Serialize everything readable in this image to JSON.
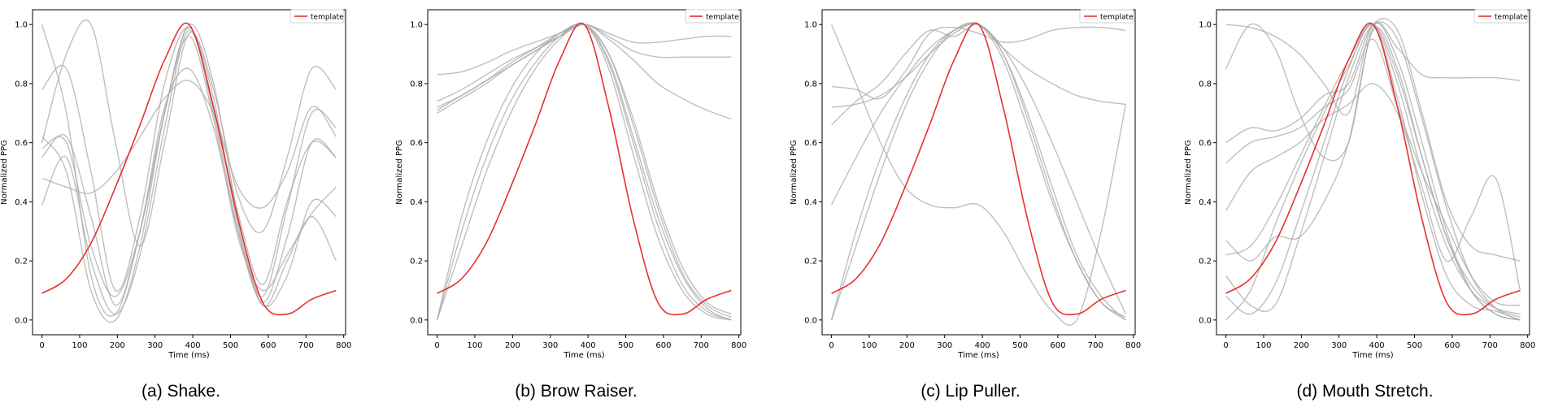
{
  "chart_data": [
    {
      "type": "line",
      "caption": "(a) Shake.",
      "xlabel": "Time (ms)",
      "ylabel": "Normalized PPG",
      "xlim": [
        -25,
        805
      ],
      "ylim": [
        -0.05,
        1.05
      ],
      "xticks": [
        0,
        100,
        200,
        300,
        400,
        500,
        600,
        700,
        800
      ],
      "yticks": [
        0.0,
        0.2,
        0.4,
        0.6,
        0.8,
        1.0
      ],
      "legend": {
        "label": "template",
        "position": "top-right"
      },
      "colors": {
        "template": "#e8312f",
        "samples": "#a9a9a9"
      },
      "x": [
        0,
        65,
        130,
        195,
        260,
        325,
        390,
        455,
        520,
        585,
        650,
        715,
        780
      ],
      "template": {
        "name": "template",
        "values": [
          0.09,
          0.14,
          0.26,
          0.45,
          0.66,
          0.88,
          1.0,
          0.72,
          0.34,
          0.06,
          0.02,
          0.07,
          0.1
        ]
      },
      "samples": [
        {
          "values": [
            1.0,
            0.7,
            0.15,
            0.02,
            0.3,
            0.7,
            1.0,
            0.8,
            0.35,
            0.05,
            0.2,
            0.35,
            0.2
          ]
        },
        {
          "values": [
            0.78,
            0.85,
            0.5,
            0.1,
            0.35,
            0.8,
            0.99,
            0.75,
            0.32,
            0.08,
            0.38,
            0.7,
            0.65
          ]
        },
        {
          "values": [
            0.6,
            0.9,
            1.0,
            0.6,
            0.25,
            0.6,
            0.97,
            0.78,
            0.42,
            0.3,
            0.55,
            0.85,
            0.78
          ]
        },
        {
          "values": [
            0.55,
            0.62,
            0.35,
            0.05,
            0.3,
            0.72,
            0.85,
            0.65,
            0.3,
            0.06,
            0.28,
            0.6,
            0.55
          ]
        },
        {
          "values": [
            0.48,
            0.45,
            0.43,
            0.5,
            0.62,
            0.75,
            0.81,
            0.7,
            0.45,
            0.38,
            0.5,
            0.72,
            0.62
          ]
        },
        {
          "values": [
            0.39,
            0.55,
            0.2,
            0.02,
            0.22,
            0.65,
            0.98,
            0.7,
            0.3,
            0.05,
            0.15,
            0.4,
            0.35
          ]
        },
        {
          "values": [
            0.62,
            0.5,
            0.1,
            0.0,
            0.25,
            0.7,
            0.96,
            0.68,
            0.28,
            0.1,
            0.22,
            0.36,
            0.45
          ]
        },
        {
          "values": [
            0.58,
            0.6,
            0.25,
            0.08,
            0.3,
            0.7,
            0.99,
            0.72,
            0.36,
            0.12,
            0.4,
            0.6,
            0.55
          ]
        }
      ]
    },
    {
      "type": "line",
      "caption": "(b) Brow Raiser.",
      "xlabel": "Time (ms)",
      "ylabel": "Normalized PPG",
      "xlim": [
        -25,
        805
      ],
      "ylim": [
        -0.05,
        1.05
      ],
      "xticks": [
        0,
        100,
        200,
        300,
        400,
        500,
        600,
        700,
        800
      ],
      "yticks": [
        0.0,
        0.2,
        0.4,
        0.6,
        0.8,
        1.0
      ],
      "legend": {
        "label": "template",
        "position": "top-right"
      },
      "colors": {
        "template": "#e8312f",
        "samples": "#a9a9a9"
      },
      "x": [
        0,
        65,
        130,
        195,
        260,
        325,
        390,
        455,
        520,
        585,
        650,
        715,
        780
      ],
      "template": {
        "name": "template",
        "values": [
          0.09,
          0.14,
          0.26,
          0.45,
          0.66,
          0.88,
          1.0,
          0.72,
          0.34,
          0.06,
          0.02,
          0.07,
          0.1
        ]
      },
      "samples": [
        {
          "values": [
            0.83,
            0.84,
            0.87,
            0.91,
            0.94,
            0.97,
            1.0,
            0.97,
            0.94,
            0.94,
            0.95,
            0.96,
            0.96
          ]
        },
        {
          "values": [
            0.74,
            0.78,
            0.83,
            0.88,
            0.92,
            0.96,
            1.0,
            0.96,
            0.91,
            0.89,
            0.89,
            0.89,
            0.89
          ]
        },
        {
          "values": [
            0.72,
            0.76,
            0.81,
            0.86,
            0.91,
            0.96,
            1.0,
            0.95,
            0.88,
            0.8,
            0.75,
            0.71,
            0.68
          ]
        },
        {
          "values": [
            0.7,
            0.75,
            0.8,
            0.86,
            0.91,
            0.96,
            1.0,
            0.88,
            0.62,
            0.35,
            0.15,
            0.04,
            0.0
          ]
        },
        {
          "values": [
            0.0,
            0.35,
            0.6,
            0.78,
            0.9,
            0.97,
            1.0,
            0.9,
            0.66,
            0.38,
            0.16,
            0.05,
            0.01
          ]
        },
        {
          "values": [
            0.0,
            0.3,
            0.55,
            0.74,
            0.87,
            0.96,
            1.0,
            0.87,
            0.6,
            0.32,
            0.12,
            0.03,
            0.0
          ]
        },
        {
          "values": [
            0.0,
            0.25,
            0.5,
            0.7,
            0.85,
            0.95,
            1.0,
            0.85,
            0.56,
            0.28,
            0.1,
            0.02,
            0.0
          ]
        },
        {
          "values": [
            0.71,
            0.76,
            0.81,
            0.87,
            0.92,
            0.97,
            1.0,
            0.9,
            0.68,
            0.4,
            0.18,
            0.06,
            0.02
          ]
        }
      ]
    },
    {
      "type": "line",
      "caption": "(c) Lip Puller.",
      "xlabel": "Time (ms)",
      "ylabel": "Normalized PPG",
      "xlim": [
        -25,
        805
      ],
      "ylim": [
        -0.05,
        1.05
      ],
      "xticks": [
        0,
        100,
        200,
        300,
        400,
        500,
        600,
        700,
        800
      ],
      "yticks": [
        0.0,
        0.2,
        0.4,
        0.6,
        0.8,
        1.0
      ],
      "legend": {
        "label": "template",
        "position": "top-right"
      },
      "colors": {
        "template": "#e8312f",
        "samples": "#a9a9a9"
      },
      "x": [
        0,
        65,
        130,
        195,
        260,
        325,
        390,
        455,
        520,
        585,
        650,
        715,
        780
      ],
      "template": {
        "name": "template",
        "values": [
          0.09,
          0.14,
          0.26,
          0.45,
          0.66,
          0.88,
          1.0,
          0.72,
          0.34,
          0.06,
          0.02,
          0.07,
          0.1
        ]
      },
      "samples": [
        {
          "values": [
            1.0,
            0.8,
            0.6,
            0.45,
            0.39,
            0.38,
            0.39,
            0.3,
            0.15,
            0.03,
            0.0,
            0.3,
            0.73
          ]
        },
        {
          "values": [
            0.79,
            0.78,
            0.75,
            0.84,
            0.97,
            0.99,
            0.97,
            0.94,
            0.95,
            0.98,
            0.99,
            0.99,
            0.98
          ]
        },
        {
          "values": [
            0.66,
            0.74,
            0.8,
            0.9,
            0.98,
            0.96,
            1.0,
            0.92,
            0.85,
            0.8,
            0.76,
            0.74,
            0.73
          ]
        },
        {
          "values": [
            0.0,
            0.3,
            0.55,
            0.75,
            0.9,
            0.98,
            1.0,
            0.88,
            0.65,
            0.4,
            0.2,
            0.06,
            0.0
          ]
        },
        {
          "values": [
            0.0,
            0.25,
            0.5,
            0.72,
            0.88,
            0.98,
            1.0,
            0.9,
            0.7,
            0.45,
            0.22,
            0.08,
            0.0
          ]
        },
        {
          "values": [
            0.39,
            0.55,
            0.7,
            0.82,
            0.92,
            0.98,
            1.0,
            0.92,
            0.78,
            0.6,
            0.4,
            0.2,
            0.02
          ]
        },
        {
          "values": [
            0.72,
            0.73,
            0.76,
            0.82,
            0.9,
            0.97,
            1.0,
            0.9,
            0.68,
            0.42,
            0.2,
            0.06,
            0.01
          ]
        }
      ]
    },
    {
      "type": "line",
      "caption": "(d) Mouth Stretch.",
      "xlabel": "Time (ms)",
      "ylabel": "Normalized PPG",
      "xlim": [
        -25,
        805
      ],
      "ylim": [
        -0.05,
        1.05
      ],
      "xticks": [
        0,
        100,
        200,
        300,
        400,
        500,
        600,
        700,
        800
      ],
      "yticks": [
        0.0,
        0.2,
        0.4,
        0.6,
        0.8,
        1.0
      ],
      "legend": {
        "label": "template",
        "position": "top-right"
      },
      "colors": {
        "template": "#e8312f",
        "samples": "#a9a9a9"
      },
      "x": [
        0,
        65,
        130,
        195,
        260,
        325,
        390,
        455,
        520,
        585,
        650,
        715,
        780
      ],
      "template": {
        "name": "template",
        "values": [
          0.09,
          0.14,
          0.26,
          0.45,
          0.66,
          0.88,
          1.0,
          0.72,
          0.34,
          0.06,
          0.02,
          0.07,
          0.1
        ]
      },
      "samples": [
        {
          "values": [
            1.0,
            0.99,
            0.96,
            0.9,
            0.8,
            0.7,
            1.0,
            0.88,
            0.6,
            0.3,
            0.1,
            0.02,
            0.0
          ]
        },
        {
          "values": [
            0.85,
            1.0,
            0.92,
            0.7,
            0.55,
            0.6,
            0.99,
            0.92,
            0.83,
            0.82,
            0.82,
            0.82,
            0.81
          ]
        },
        {
          "values": [
            0.6,
            0.65,
            0.64,
            0.68,
            0.76,
            0.8,
            1.0,
            0.98,
            0.7,
            0.4,
            0.25,
            0.22,
            0.2
          ]
        },
        {
          "values": [
            0.53,
            0.6,
            0.62,
            0.65,
            0.72,
            0.78,
            0.95,
            0.72,
            0.5,
            0.32,
            0.15,
            0.06,
            0.05
          ]
        },
        {
          "values": [
            0.37,
            0.5,
            0.55,
            0.6,
            0.68,
            0.73,
            0.8,
            0.7,
            0.45,
            0.2,
            0.35,
            0.48,
            0.1
          ]
        },
        {
          "values": [
            0.27,
            0.2,
            0.28,
            0.28,
            0.4,
            0.6,
            0.98,
            0.85,
            0.55,
            0.28,
            0.12,
            0.04,
            0.01
          ]
        },
        {
          "values": [
            0.15,
            0.05,
            0.05,
            0.28,
            0.55,
            0.82,
            1.0,
            0.95,
            0.68,
            0.38,
            0.15,
            0.04,
            0.0
          ]
        },
        {
          "values": [
            0.22,
            0.25,
            0.38,
            0.55,
            0.72,
            0.88,
            1.0,
            0.8,
            0.5,
            0.25,
            0.1,
            0.04,
            0.02
          ]
        },
        {
          "values": [
            0.0,
            0.1,
            0.32,
            0.52,
            0.7,
            0.86,
            1.0,
            0.83,
            0.55,
            0.28,
            0.1,
            0.02,
            0.0
          ]
        },
        {
          "values": [
            0.08,
            0.02,
            0.12,
            0.35,
            0.6,
            0.85,
            1.0,
            0.75,
            0.42,
            0.15,
            0.05,
            0.03,
            0.0
          ]
        }
      ]
    }
  ]
}
